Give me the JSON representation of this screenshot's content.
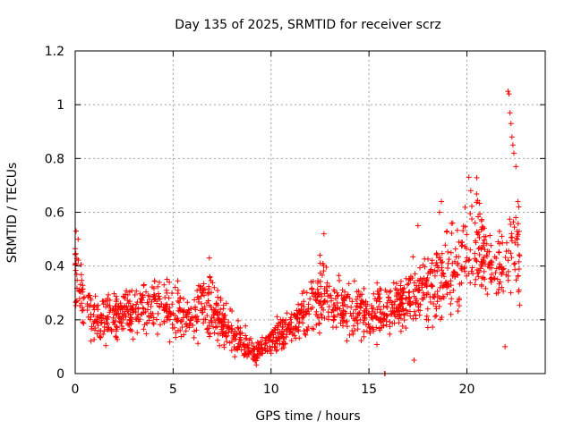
{
  "chart_data": {
    "type": "scatter",
    "title": "Day 135 of 2025, SRMTID for receiver scrz",
    "xlabel": "GPS time / hours",
    "ylabel": "SRMTID / TECUs",
    "xlim": [
      0,
      24
    ],
    "ylim": [
      0,
      1.2
    ],
    "xticks": [
      0,
      5,
      10,
      15,
      20
    ],
    "xtick_labels": [
      "0",
      "5",
      "10",
      "15",
      "20"
    ],
    "yticks": [
      0,
      0.2,
      0.4,
      0.6,
      0.8,
      1,
      1.2
    ],
    "ytick_labels": [
      "0",
      "0.2",
      "0.4",
      "0.6",
      "0.8",
      "1",
      "1.2"
    ],
    "grid": true,
    "marker": "+",
    "colors": {
      "marker": "#ff0000",
      "grid": "#a0a0a0",
      "frame": "#000000"
    },
    "envelope": {
      "x": [
        0,
        0.1,
        0.3,
        0.6,
        1,
        2,
        3,
        4,
        5,
        6,
        6.8,
        7.5,
        8,
        8.5,
        9,
        9.3,
        9.6,
        10,
        10.5,
        11,
        11.5,
        12,
        12.5,
        13,
        14,
        15,
        16,
        17,
        18,
        19,
        20,
        20.5,
        21,
        21.5,
        22,
        22.5,
        22.7
      ],
      "lo": [
        0.2,
        0.18,
        0.12,
        0.1,
        0.08,
        0.09,
        0.09,
        0.1,
        0.09,
        0.08,
        0.09,
        0.07,
        0.04,
        0.03,
        0.02,
        0.01,
        0.03,
        0.05,
        0.07,
        0.08,
        0.09,
        0.1,
        0.1,
        0.1,
        0.09,
        0.1,
        0.1,
        0.12,
        0.13,
        0.15,
        0.2,
        0.22,
        0.23,
        0.24,
        0.22,
        0.2,
        0.18
      ],
      "hi": [
        0.52,
        0.5,
        0.4,
        0.35,
        0.3,
        0.3,
        0.32,
        0.38,
        0.33,
        0.3,
        0.4,
        0.28,
        0.22,
        0.18,
        0.14,
        0.12,
        0.16,
        0.2,
        0.22,
        0.24,
        0.28,
        0.35,
        0.45,
        0.38,
        0.35,
        0.32,
        0.34,
        0.4,
        0.45,
        0.55,
        0.6,
        0.7,
        0.55,
        0.5,
        0.65,
        0.6,
        0.55
      ]
    },
    "notable_points": [
      {
        "x": 0.05,
        "y": 0.53
      },
      {
        "x": 0.15,
        "y": 0.5
      },
      {
        "x": 6.85,
        "y": 0.43
      },
      {
        "x": 12.7,
        "y": 0.52
      },
      {
        "x": 12.5,
        "y": 0.44
      },
      {
        "x": 17.5,
        "y": 0.55
      },
      {
        "x": 18.7,
        "y": 0.64
      },
      {
        "x": 18.6,
        "y": 0.6
      },
      {
        "x": 20.1,
        "y": 0.73
      },
      {
        "x": 20.2,
        "y": 0.68
      },
      {
        "x": 22.1,
        "y": 1.05
      },
      {
        "x": 22.15,
        "y": 1.04
      },
      {
        "x": 22.2,
        "y": 0.97
      },
      {
        "x": 22.25,
        "y": 0.93
      },
      {
        "x": 22.3,
        "y": 0.88
      },
      {
        "x": 22.35,
        "y": 0.85
      },
      {
        "x": 22.4,
        "y": 0.82
      },
      {
        "x": 22.5,
        "y": 0.77
      },
      {
        "x": 22.6,
        "y": 0.64
      },
      {
        "x": 22.65,
        "y": 0.62
      },
      {
        "x": 15.8,
        "y": 0.0
      },
      {
        "x": 15.82,
        "y": 0.0
      },
      {
        "x": 17.3,
        "y": 0.05
      },
      {
        "x": 21.95,
        "y": 0.1
      }
    ],
    "point_count": 1600
  }
}
